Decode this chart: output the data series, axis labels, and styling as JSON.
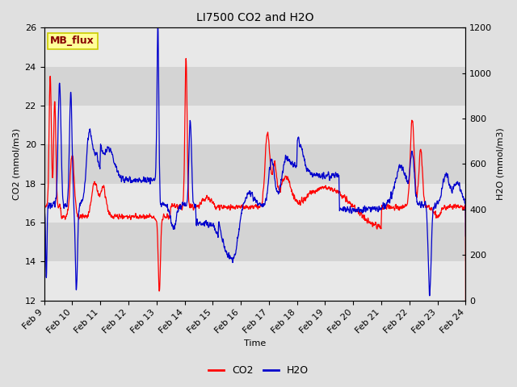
{
  "title": "LI7500 CO2 and H2O",
  "xlabel": "Time",
  "ylabel_left": "CO2 (mmol/m3)",
  "ylabel_right": "H2O (mmol/m3)",
  "co2_color": "#ff0000",
  "h2o_color": "#0000cc",
  "ylim_co2": [
    12,
    26
  ],
  "ylim_h2o": [
    0,
    1200
  ],
  "yticks_co2": [
    12,
    14,
    16,
    18,
    20,
    22,
    24,
    26
  ],
  "yticks_h2o": [
    0,
    200,
    400,
    600,
    800,
    1000,
    1200
  ],
  "xtick_labels": [
    "Feb 9",
    "Feb 10",
    "Feb 11",
    "Feb 12",
    "Feb 13",
    "Feb 14",
    "Feb 15",
    "Feb 16",
    "Feb 17",
    "Feb 18",
    "Feb 19",
    "Feb 20",
    "Feb 21",
    "Feb 22",
    "Feb 23",
    "Feb 24"
  ],
  "bg_color": "#e0e0e0",
  "plot_bg_color": "#ffffff",
  "band_light": "#e8e8e8",
  "band_dark": "#d4d4d4",
  "annotation_text": "MB_flux",
  "annotation_bg": "#ffff99",
  "annotation_border": "#cccc00",
  "annotation_text_color": "#880000",
  "legend_co2": "CO2",
  "legend_h2o": "H2O",
  "font_size": 8,
  "title_fontsize": 10
}
